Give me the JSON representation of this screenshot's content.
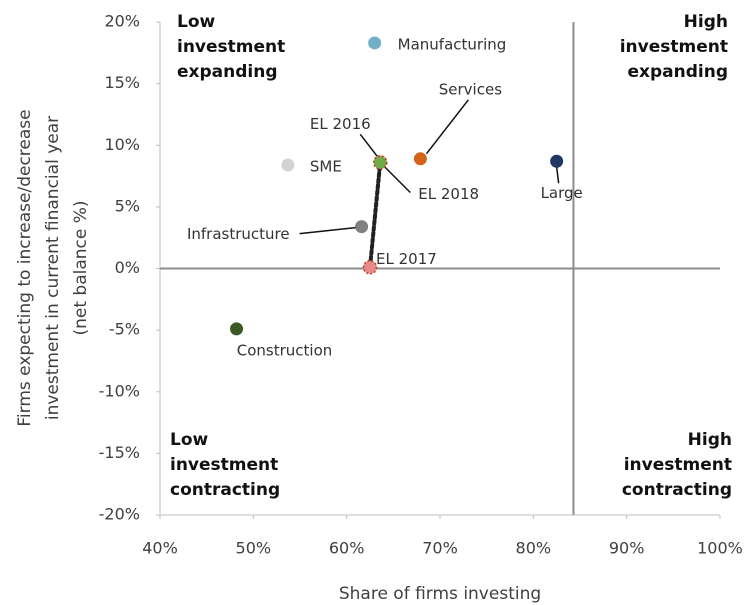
{
  "chart_data": {
    "type": "scatter",
    "x_label": "Share of firms investing",
    "y_label": [
      "Firms expecting to increase/decrease",
      "investment in current financial year",
      "(net balance %)"
    ],
    "xlim": [
      40,
      100
    ],
    "ylim": [
      -20,
      20
    ],
    "xticks": [
      {
        "value": 40,
        "label": "40%"
      },
      {
        "value": 50,
        "label": "50%"
      },
      {
        "value": 60,
        "label": "60%"
      },
      {
        "value": 70,
        "label": "70%"
      },
      {
        "value": 80,
        "label": "80%"
      },
      {
        "value": 90,
        "label": "90%"
      },
      {
        "value": 100,
        "label": "100%"
      }
    ],
    "yticks": [
      {
        "value": -20,
        "label": "-20%"
      },
      {
        "value": -15,
        "label": "-15%"
      },
      {
        "value": -10,
        "label": "-10%"
      },
      {
        "value": -5,
        "label": "-5%"
      },
      {
        "value": 0,
        "label": "0%"
      },
      {
        "value": 5,
        "label": "5%"
      },
      {
        "value": 10,
        "label": "10%"
      },
      {
        "value": 15,
        "label": "15%"
      },
      {
        "value": 20,
        "label": "20%"
      }
    ],
    "reference_lines": {
      "x": 84.3,
      "y": 0
    },
    "points": [
      {
        "label": "Manufacturing",
        "x": 63.0,
        "y": 18.3,
        "color": "#72b0c8"
      },
      {
        "label": "Services",
        "x": 67.9,
        "y": 8.9,
        "color": "#d5611b"
      },
      {
        "label": "Large",
        "x": 82.5,
        "y": 8.7,
        "color": "#1f3864"
      },
      {
        "label": "SME",
        "x": 53.7,
        "y": 8.4,
        "color": "#d3d3d3"
      },
      {
        "label": "EL 2016",
        "x": 63.6,
        "y": 8.7,
        "color": "#f6c1c1"
      },
      {
        "label": "EL 2018",
        "x": 63.6,
        "y": 8.6,
        "color": "#70ad47"
      },
      {
        "label": "Infrastructure",
        "x": 61.6,
        "y": 3.4,
        "color": "#7f7f7f"
      },
      {
        "label": "EL 2017",
        "x": 62.5,
        "y": 0.1,
        "color": "#e88a8a"
      },
      {
        "label": "Construction",
        "x": 48.2,
        "y": -4.9,
        "color": "#3b5a23"
      }
    ],
    "trail": [
      4,
      7,
      5
    ],
    "quadrant_labels": [
      {
        "lines": [
          "Low",
          "investment",
          "expanding"
        ]
      },
      {
        "lines": [
          "High",
          "investment",
          "expanding"
        ]
      },
      {
        "lines": [
          "Low",
          "investment",
          "contracting"
        ]
      },
      {
        "lines": [
          "High",
          "investment",
          "contracting"
        ]
      }
    ]
  }
}
